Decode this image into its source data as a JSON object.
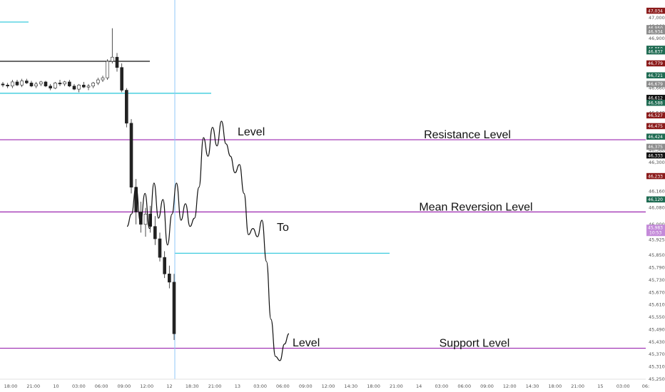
{
  "chart_data": {
    "type": "line",
    "title": "",
    "xlabel": "",
    "ylabel": "",
    "ylim": [
      45250,
      47080
    ],
    "y_ticks": [
      47000,
      46960,
      46900,
      46840,
      46780,
      46720,
      46660,
      46600,
      46540,
      46480,
      46420,
      46360,
      46300,
      46240,
      46160,
      46080,
      46000,
      45925,
      45850,
      45790,
      45730,
      45670,
      45610,
      45550,
      45490,
      45430,
      45370,
      45310,
      45250
    ],
    "x_ticks": [
      "18:00",
      "21:00",
      "10",
      "03:00",
      "06:00",
      "09:00",
      "12:00",
      "12",
      "18:30",
      "21:00",
      "13",
      "03:00",
      "06:00",
      "09:00",
      "12:00",
      "14:30",
      "18:00",
      "21:00",
      "14",
      "03:00",
      "06:00",
      "09:00",
      "12:00",
      "14:30",
      "18:00",
      "21:00",
      "15",
      "03:00",
      "06:"
    ],
    "grid": false,
    "price_badges": [
      {
        "label": "47,034",
        "value": 47034,
        "color": "#8b1a1a"
      },
      {
        "label": "46,950",
        "value": 46950,
        "color": "#8c8c8c"
      },
      {
        "label": "46,934",
        "value": 46934,
        "color": "#8c8c8c"
      },
      {
        "label": "46,850",
        "value": 46850,
        "color": "#1e6b52"
      },
      {
        "label": "46,837",
        "value": 46837,
        "color": "#1e6b52"
      },
      {
        "label": "46,779",
        "value": 46779,
        "color": "#8b1a1a"
      },
      {
        "label": "46,721",
        "value": 46721,
        "color": "#1e6b52"
      },
      {
        "label": "46,679",
        "value": 46679,
        "color": "#1e6b52"
      },
      {
        "label": "46,679",
        "value": 46679,
        "color": "#8c8c8c"
      },
      {
        "label": "46,612",
        "value": 46612,
        "color": "#111111"
      },
      {
        "label": "46,588",
        "value": 46588,
        "color": "#1e6b52"
      },
      {
        "label": "46,527",
        "value": 46527,
        "color": "#8b1a1a"
      },
      {
        "label": "46,475",
        "value": 46475,
        "color": "#8b1a1a"
      },
      {
        "label": "46,424",
        "value": 46424,
        "color": "#1e6b52"
      },
      {
        "label": "46,375",
        "value": 46375,
        "color": "#8c8c8c"
      },
      {
        "label": "46,333",
        "value": 46333,
        "color": "#111111"
      },
      {
        "label": "46,233",
        "value": 46233,
        "color": "#8b1a1a"
      },
      {
        "label": "46,120",
        "value": 46120,
        "color": "#1e6b52"
      },
      {
        "label": "45,983",
        "value": 45983,
        "color": "#c48ad9",
        "sub": "10:53"
      }
    ],
    "levels": [
      {
        "name": "Resistance Level",
        "value": 46410,
        "color": "#9c27b0"
      },
      {
        "name": "Mean Reversion Level",
        "value": 46060,
        "color": "#9c27b0"
      },
      {
        "name": "Support Level",
        "value": 45400,
        "color": "#9c27b0"
      }
    ],
    "horizontal_lines": [
      {
        "value": 46790,
        "color": "#111111"
      },
      {
        "value": 46635,
        "color": "#26c6da"
      },
      {
        "value": 46980,
        "color": "#26c6da"
      },
      {
        "value": 45860,
        "color": "#26c6da"
      }
    ],
    "vertical_marker": {
      "x_label": "12",
      "color": "#90caf9"
    },
    "candles": [
      [
        46680,
        46690,
        46665,
        46675
      ],
      [
        46675,
        46685,
        46660,
        46670
      ],
      [
        46670,
        46700,
        46660,
        46690
      ],
      [
        46690,
        46700,
        46670,
        46675
      ],
      [
        46675,
        46705,
        46665,
        46695
      ],
      [
        46695,
        46705,
        46680,
        46685
      ],
      [
        46685,
        46695,
        46665,
        46670
      ],
      [
        46670,
        46690,
        46660,
        46680
      ],
      [
        46680,
        46695,
        46670,
        46690
      ],
      [
        46690,
        46695,
        46665,
        46670
      ],
      [
        46670,
        46680,
        46650,
        46660
      ],
      [
        46660,
        46690,
        46655,
        46685
      ],
      [
        46685,
        46700,
        46670,
        46680
      ],
      [
        46680,
        46695,
        46670,
        46690
      ],
      [
        46690,
        46700,
        46665,
        46670
      ],
      [
        46670,
        46680,
        46650,
        46655
      ],
      [
        46655,
        46680,
        46640,
        46675
      ],
      [
        46675,
        46690,
        46660,
        46665
      ],
      [
        46665,
        46680,
        46650,
        46670
      ],
      [
        46670,
        46690,
        46660,
        46685
      ],
      [
        46685,
        46710,
        46675,
        46700
      ],
      [
        46700,
        46720,
        46690,
        46710
      ],
      [
        46710,
        46800,
        46700,
        46790
      ],
      [
        46790,
        46950,
        46780,
        46810
      ],
      [
        46810,
        46830,
        46740,
        46760
      ],
      [
        46760,
        46780,
        46640,
        46650
      ],
      [
        46650,
        46660,
        46470,
        46490
      ],
      [
        46490,
        46510,
        46150,
        46180
      ],
      [
        46180,
        46220,
        46000,
        46060
      ],
      [
        46060,
        46110,
        45960,
        46000
      ],
      [
        46000,
        46080,
        45940,
        46050
      ],
      [
        46050,
        46090,
        45960,
        45990
      ],
      [
        45990,
        46040,
        45900,
        45930
      ],
      [
        45930,
        45960,
        45820,
        45840
      ],
      [
        45840,
        45870,
        45740,
        45760
      ],
      [
        45760,
        45800,
        45690,
        45720
      ],
      [
        45720,
        45760,
        45440,
        45470
      ]
    ],
    "scenario_path": [
      [
        0.0,
        45990
      ],
      [
        1.0,
        46050
      ],
      [
        2.0,
        46180
      ],
      [
        3.0,
        46010
      ],
      [
        4.0,
        46150
      ],
      [
        5.0,
        45980
      ],
      [
        6.0,
        46200
      ],
      [
        7.0,
        46030
      ],
      [
        8.0,
        46120
      ],
      [
        9.0,
        45900
      ],
      [
        10.0,
        46050
      ],
      [
        11.0,
        46200
      ],
      [
        12.0,
        46020
      ],
      [
        13.0,
        46100
      ],
      [
        14.0,
        45990
      ],
      [
        15.0,
        46030
      ],
      [
        16.0,
        46180
      ],
      [
        17.0,
        46420
      ],
      [
        18.0,
        46330
      ],
      [
        19.0,
        46470
      ],
      [
        20.0,
        46380
      ],
      [
        21.0,
        46500
      ],
      [
        22.0,
        46390
      ],
      [
        23.0,
        46330
      ],
      [
        24.0,
        46250
      ],
      [
        25.0,
        46290
      ],
      [
        26.0,
        46150
      ],
      [
        27.0,
        45950
      ],
      [
        28.0,
        45980
      ],
      [
        29.0,
        45940
      ],
      [
        30.0,
        46020
      ],
      [
        31.0,
        45820
      ],
      [
        32.0,
        45540
      ],
      [
        33.0,
        45360
      ],
      [
        34.0,
        45340
      ],
      [
        35.0,
        45420
      ],
      [
        36.0,
        45470
      ]
    ],
    "annotations": [
      {
        "text": "Level",
        "near": "scenario-peak"
      },
      {
        "text": "To",
        "near": "mean-reversion-rejection"
      },
      {
        "text": "Level",
        "near": "support-bounce"
      }
    ]
  }
}
